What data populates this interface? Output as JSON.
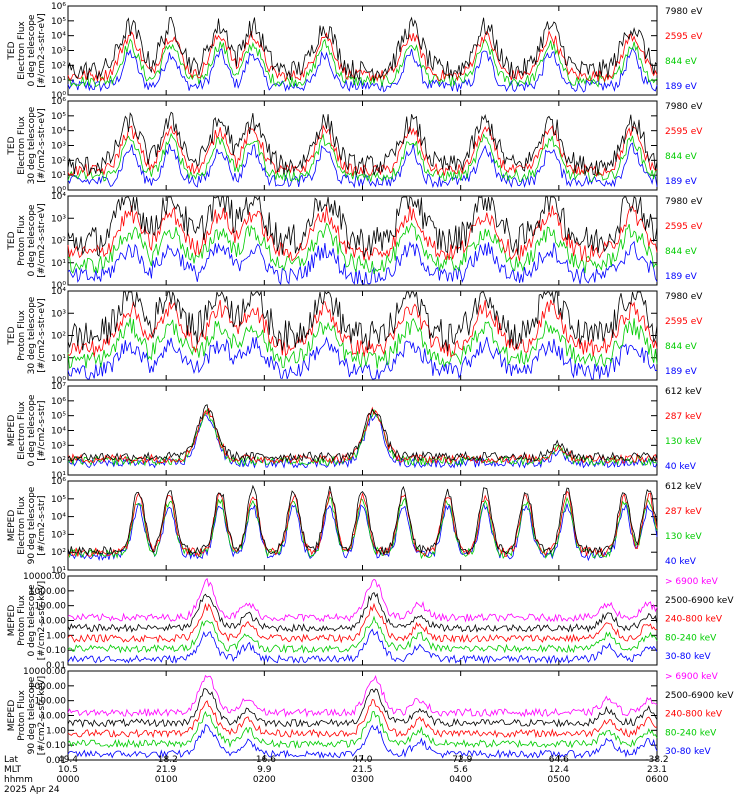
{
  "chart_data": [
    {
      "type": "line",
      "ylabel_lines": [
        "TED",
        "Electron Flux",
        "0 deg telescope",
        "[#/cm2-s-str-eV]"
      ],
      "y_ticks": [
        "10⁰",
        "10¹",
        "10²",
        "10³",
        "10⁴",
        "10⁵",
        "10⁶"
      ],
      "y_log_range": [
        0,
        6
      ],
      "series": [
        {
          "name": "7980 eV",
          "color": "#000000"
        },
        {
          "name": "2595 eV",
          "color": "#ff0000"
        },
        {
          "name": "844 eV",
          "color": "#00cc00"
        },
        {
          "name": "189 eV",
          "color": "#0000ff"
        }
      ]
    },
    {
      "type": "line",
      "ylabel_lines": [
        "TED",
        "Electron Flux",
        "30 deg telescope",
        "[#/cm2-s-str-eV]"
      ],
      "y_ticks": [
        "10⁰",
        "10¹",
        "10²",
        "10³",
        "10⁴",
        "10⁵",
        "10⁶"
      ],
      "y_log_range": [
        0,
        6
      ],
      "series": [
        {
          "name": "7980 eV",
          "color": "#000000"
        },
        {
          "name": "2595 eV",
          "color": "#ff0000"
        },
        {
          "name": "844 eV",
          "color": "#00cc00"
        },
        {
          "name": "189 eV",
          "color": "#0000ff"
        }
      ]
    },
    {
      "type": "line",
      "ylabel_lines": [
        "TED",
        "Proton Flux",
        "0 deg telescope",
        "[#/cm2-s-str-eV]"
      ],
      "y_ticks": [
        "10⁰",
        "10¹",
        "10²",
        "10³",
        "10⁴"
      ],
      "y_log_range": [
        0,
        4.5
      ],
      "series": [
        {
          "name": "7980 eV",
          "color": "#000000"
        },
        {
          "name": "2595 eV",
          "color": "#ff0000"
        },
        {
          "name": "844 eV",
          "color": "#00cc00"
        },
        {
          "name": "189 eV",
          "color": "#0000ff"
        }
      ]
    },
    {
      "type": "line",
      "ylabel_lines": [
        "TED",
        "Proton Flux",
        "30 deg telescope",
        "[#/cm2-s-str-eV]"
      ],
      "y_ticks": [
        "10⁰",
        "10¹",
        "10²",
        "10³",
        "10⁴"
      ],
      "y_log_range": [
        0,
        4.5
      ],
      "series": [
        {
          "name": "7980 eV",
          "color": "#000000"
        },
        {
          "name": "2595 eV",
          "color": "#ff0000"
        },
        {
          "name": "844 eV",
          "color": "#00cc00"
        },
        {
          "name": "189 eV",
          "color": "#0000ff"
        }
      ]
    },
    {
      "type": "line",
      "ylabel_lines": [
        "MEPED",
        "Electron Flux",
        "0 deg telescope",
        "[#/cm2-s-str]"
      ],
      "y_ticks": [
        "10¹",
        "10²",
        "10³",
        "10⁴",
        "10⁵",
        "10⁶",
        "10⁷"
      ],
      "y_log_range": [
        1,
        7
      ],
      "series": [
        {
          "name": "612 keV",
          "color": "#000000"
        },
        {
          "name": "287 keV",
          "color": "#ff0000"
        },
        {
          "name": "130 keV",
          "color": "#00cc00"
        },
        {
          "name": "40 keV",
          "color": "#0000ff"
        }
      ]
    },
    {
      "type": "line",
      "ylabel_lines": [
        "MEPED",
        "Electron Flux",
        "90 deg telescope",
        "[#/cm2-s-str]"
      ],
      "y_ticks": [
        "10¹",
        "10²",
        "10³",
        "10⁴",
        "10⁵",
        "10⁶"
      ],
      "y_log_range": [
        1,
        6
      ],
      "series": [
        {
          "name": "612 keV",
          "color": "#000000"
        },
        {
          "name": "287 keV",
          "color": "#ff0000"
        },
        {
          "name": "130 keV",
          "color": "#00cc00"
        },
        {
          "name": "40 keV",
          "color": "#0000ff"
        }
      ]
    },
    {
      "type": "line",
      "ylabel_lines": [
        "MEPED",
        "Proton Flux",
        "0 deg telescope",
        "[#/cm2-s-str-keV]"
      ],
      "y_ticks": [
        "0.01",
        "0.10",
        "1.00",
        "10.00",
        "100.00",
        "1000.00",
        "10000.00"
      ],
      "y_log_range": [
        -2,
        4
      ],
      "series": [
        {
          "name": "> 6900 keV",
          "color": "#ff00ff"
        },
        {
          "name": "2500-6900 keV",
          "color": "#000000"
        },
        {
          "name": "240-800 keV",
          "color": "#ff0000"
        },
        {
          "name": "80-240 keV",
          "color": "#00cc00"
        },
        {
          "name": "30-80 keV",
          "color": "#0000ff"
        }
      ]
    },
    {
      "type": "line",
      "ylabel_lines": [
        "MEPED",
        "Proton Flux",
        "90 deg telescope",
        "[#/cm2-s-str-keV]"
      ],
      "y_ticks": [
        "0.01",
        "0.10",
        "1.00",
        "10.00",
        "100.00",
        "1000.00",
        "10000.00"
      ],
      "y_log_range": [
        -2,
        4
      ],
      "series": [
        {
          "name": "> 6900 keV",
          "color": "#ff00ff"
        },
        {
          "name": "2500-6900 keV",
          "color": "#000000"
        },
        {
          "name": "240-800 keV",
          "color": "#ff0000"
        },
        {
          "name": "80-240 keV",
          "color": "#00cc00"
        },
        {
          "name": "30-80 keV",
          "color": "#0000ff"
        }
      ]
    }
  ],
  "x_axis": {
    "row_labels": [
      "Lat",
      "MLT",
      "hhmm"
    ],
    "ticks": [
      {
        "lat": "49.4",
        "mlt": "10.5",
        "hhmm": "0000"
      },
      {
        "lat": "-18.2",
        "mlt": "21.9",
        "hhmm": "0100"
      },
      {
        "lat": "-16.6",
        "mlt": "9.9",
        "hhmm": "0200"
      },
      {
        "lat": "47.0",
        "mlt": "21.5",
        "hhmm": "0300"
      },
      {
        "lat": "-72.9",
        "mlt": "5.6",
        "hhmm": "0400"
      },
      {
        "lat": "64.6",
        "mlt": "12.4",
        "hhmm": "0500"
      },
      {
        "lat": "-38.2",
        "mlt": "23.1",
        "hhmm": "0600"
      }
    ],
    "date": "2025 Apr 24"
  },
  "time_range_minutes": [
    0,
    360
  ]
}
